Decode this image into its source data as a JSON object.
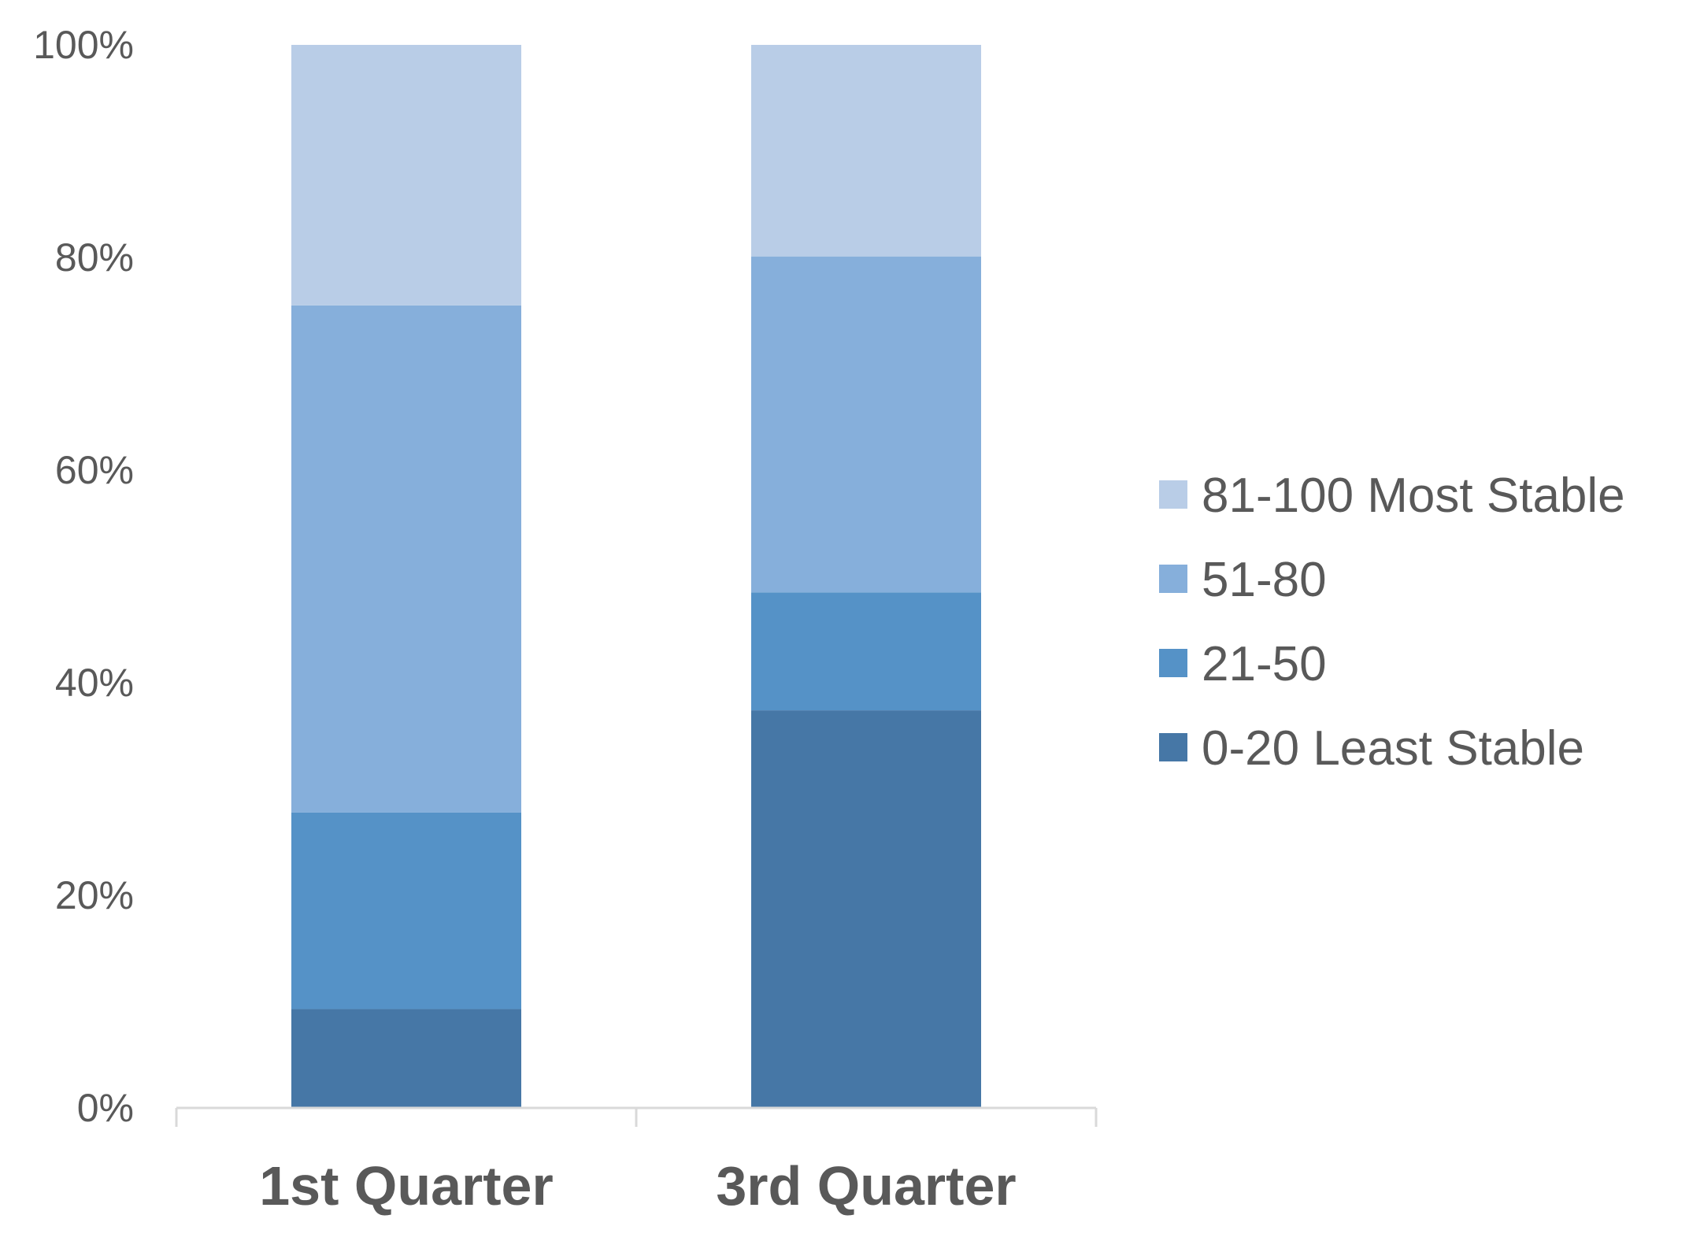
{
  "chart_data": {
    "type": "bar",
    "stacked": true,
    "normalized": true,
    "title": "",
    "xlabel": "",
    "ylabel": "",
    "ylim": [
      0,
      100
    ],
    "yticks": [
      "0%",
      "20%",
      "40%",
      "60%",
      "80%",
      "100%"
    ],
    "ytick_values": [
      0,
      20,
      40,
      60,
      80,
      100
    ],
    "grid": false,
    "legend_position": "right",
    "categories": [
      "1st Quarter",
      "3rd Quarter"
    ],
    "series": [
      {
        "name": "0-20 Least Stable",
        "color": "#4677a6",
        "values": [
          9.3,
          37.4
        ]
      },
      {
        "name": "21-50",
        "color": "#5592c7",
        "values": [
          18.5,
          11.1
        ]
      },
      {
        "name": "51-80",
        "color": "#86afdb",
        "values": [
          47.7,
          31.6
        ]
      },
      {
        "name": "81-100 Most Stable",
        "color": "#b9cde7",
        "values": [
          24.5,
          19.9
        ]
      }
    ],
    "legend_order": [
      "81-100 Most Stable",
      "51-80",
      "21-50",
      "0-20 Least Stable"
    ]
  }
}
